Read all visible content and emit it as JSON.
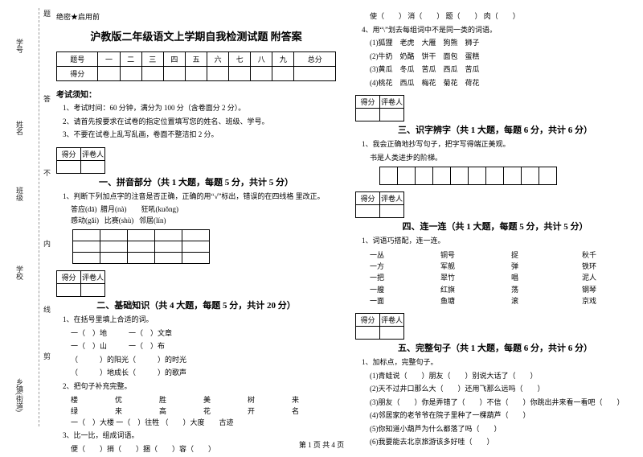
{
  "vlabels": {
    "a": "学号",
    "b": "姓名",
    "c": "班级",
    "d": "学校",
    "e": "乡镇(街道)",
    "cut": "剪",
    "line": "线",
    "in": "内",
    "not": "不",
    "ans": "答",
    "ti": "题"
  },
  "topmark": "绝密★启用前",
  "title": "沪教版二年级语文上学期自我检测试题 附答案",
  "head": [
    "题号",
    "一",
    "二",
    "三",
    "四",
    "五",
    "六",
    "七",
    "八",
    "九",
    "总分"
  ],
  "headRow": "得分",
  "kxz": "考试须知：",
  "kxz1": "1、考试时间：60 分钟，满分为 100 分（含卷面分 2 分）。",
  "kxz2": "2、请首先按要求在试卷的指定位置填写您的姓名、班级、学号。",
  "kxz3": "3、不要在试卷上乱写乱画，卷面不整洁扣 2 分。",
  "scoreLabel": [
    "得分",
    "评卷人"
  ],
  "s1": {
    "t": "一、拼音部分（共 1 大题，每题 5 分，共计 5 分）",
    "q": "1、判断下列加点字的注音是否正确，正确的用“√”标出，错误的在四线格 里改正。",
    "opts": "答应(dā)  腊月(nà)　　狂吼(kuǒng)\n感动(gǎi)   比赛(shù)   邻居(lín)"
  },
  "s2": {
    "t": "二、基础知识（共 4 大题，每题 5 分，共计 20 分）",
    "q1": "1、在括号里填上合适的词。",
    "lines": [
      "一（　）地　　　一（　）文章",
      "一（　）山　　　一（　）布",
      "（　　　）的阳光（　　　）的时光",
      "（　　　）地成长（　　　）的歌声"
    ],
    "q2": "2、把句子补充完整。",
    "grid": [
      "楼",
      "优",
      "胜",
      "美",
      "树",
      "来",
      "绿",
      "来",
      "高",
      "花",
      "开",
      "名"
    ],
    "l2a": "一（　）大楼  一（　）往牲 （　　）大度",
    "l2b": "（　）一比，组成词语。",
    "l2c": "古迹",
    "q3": "3、比一比，组成词语。",
    "l3": "便（　　）捎（　　）捆（　　）容（　　）"
  },
  "rtop": "使（　　）  消（　　）  题（　　）  肉（　　）",
  "s2q4": "4、用“\\”划去每组词中不是同一类的词语。",
  "g1": "(1)狐狸　老虎　大雁　狗熊　狮子",
  "g2": "(2)牛奶　奶酪　饼干　面包　蛋糕",
  "g3": "(3)黄瓜　冬瓜　苦瓜　西瓜　苦瓜",
  "g4": "(4)桃花　西瓜　梅花　菊花　荷花",
  "s3": {
    "t": "三、识字辨字（共 1 大题，每题 6 分，共计 6 分）",
    "q": "1、我会正确地抄写句子，把字写得端正美观。",
    "line": "书是人类进步的阶梯。"
  },
  "s4": {
    "t": "四、连一连（共 1 大题，每题 5 分，共计 5 分）",
    "q": "1、词语巧搭配，连一连。",
    "rows": [
      [
        "一丛",
        "铜号",
        "捉",
        "秋千"
      ],
      [
        "一方",
        "军舰",
        "弹",
        "铁环"
      ],
      [
        "一把",
        "翠竹",
        "唱",
        "泥人"
      ],
      [
        "一艘",
        "红旗",
        "荡",
        "钢琴"
      ],
      [
        "一面",
        "鱼塘",
        "滚",
        "京戏"
      ]
    ]
  },
  "s5": {
    "t": "五、完整句子（共 1 大题，每题 6 分，共计 6 分）",
    "q": "1、加标点，完整句子。",
    "r": [
      "(1)青蛙说（　　）朋友（　　）别说大话了（　　）",
      "(2)天不过井口那么大（　　）还用飞那么远吗（　　）",
      "(3)朋友（　　）你是弄错了（　　）不信（　　）你跳出井来看一看吧（　　）",
      "(4)邻居家的老爷爷在院子里种了一棵葫芦（　　）",
      "(5)你知道小葫芦为什么都落了吗（　　）",
      "(6)我要能去北京旅游该多好哇（　　）"
    ]
  },
  "footer": "第 1 页 共 4 页"
}
